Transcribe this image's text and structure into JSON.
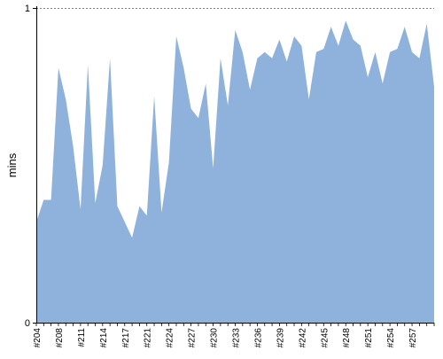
{
  "chart_data": {
    "type": "area",
    "title": "",
    "xlabel": "",
    "ylabel": "mins",
    "ylim": [
      0,
      1
    ],
    "y_ticks": [
      "0",
      "1"
    ],
    "grid": false,
    "legend": "none",
    "colors": {
      "area": "#8eb2dc",
      "axis": "#000000",
      "top_gridline": "#808080"
    },
    "x_tick_labels": [
      "#204",
      "#208",
      "#211",
      "#214",
      "#217",
      "#221",
      "#224",
      "#227",
      "#230",
      "#233",
      "#236",
      "#239",
      "#242",
      "#245",
      "#248",
      "#251",
      "#254",
      "#257"
    ],
    "series": [
      {
        "values": [
          0.32,
          0.39,
          0.39,
          0.81,
          0.71,
          0.56,
          0.36,
          0.82,
          0.38,
          0.5,
          0.84,
          0.37,
          0.32,
          0.27,
          0.37,
          0.34,
          0.72,
          0.35,
          0.51,
          0.91,
          0.81,
          0.68,
          0.65,
          0.76,
          0.49,
          0.84,
          0.69,
          0.93,
          0.86,
          0.74,
          0.84,
          0.86,
          0.84,
          0.9,
          0.83,
          0.91,
          0.88,
          0.71,
          0.86,
          0.87,
          0.94,
          0.88,
          0.96,
          0.9,
          0.88,
          0.78,
          0.86,
          0.76,
          0.86,
          0.87,
          0.94,
          0.86,
          0.84,
          0.95,
          0.75
        ]
      }
    ]
  }
}
